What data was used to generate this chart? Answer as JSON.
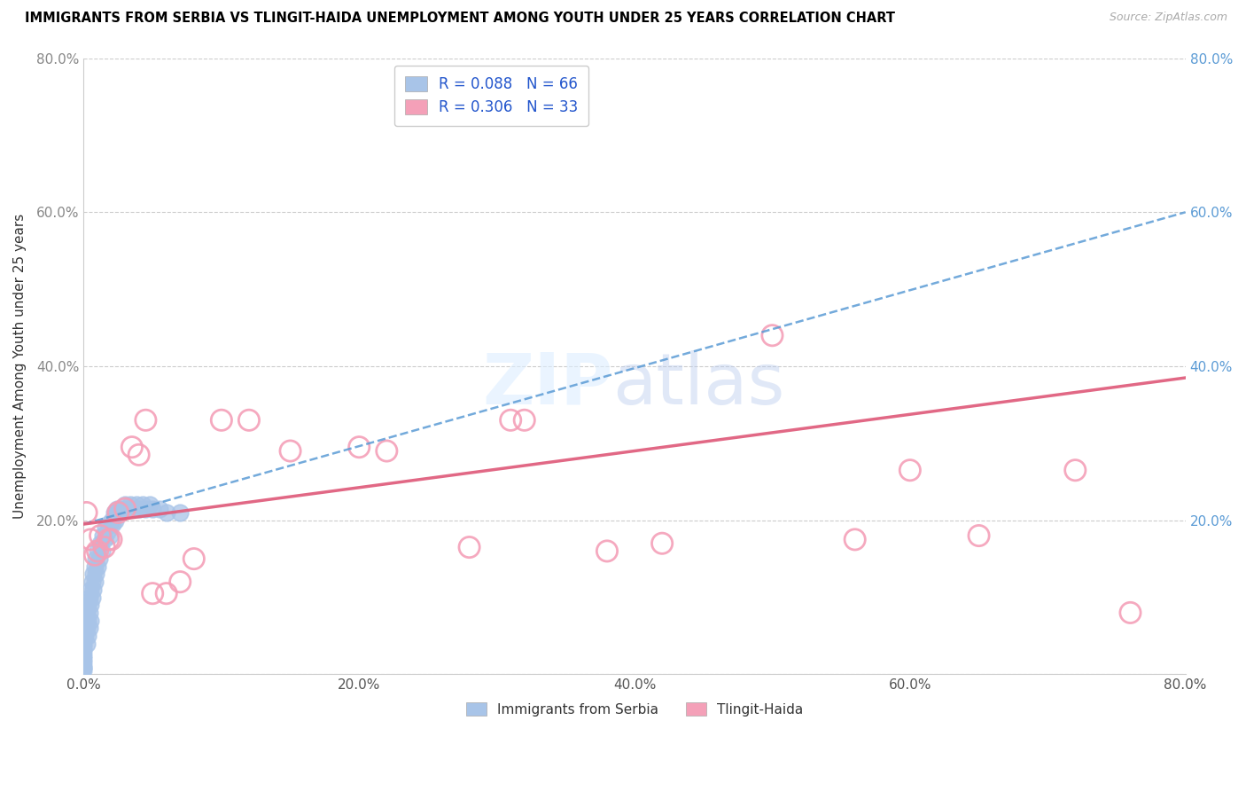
{
  "title": "IMMIGRANTS FROM SERBIA VS TLINGIT-HAIDA UNEMPLOYMENT AMONG YOUTH UNDER 25 YEARS CORRELATION CHART",
  "source": "Source: ZipAtlas.com",
  "ylabel": "Unemployment Among Youth under 25 years",
  "xlim": [
    0,
    0.8
  ],
  "ylim": [
    0,
    0.8
  ],
  "xticks": [
    0.0,
    0.2,
    0.4,
    0.6,
    0.8
  ],
  "yticks": [
    0.0,
    0.2,
    0.4,
    0.6,
    0.8
  ],
  "xtick_labels": [
    "0.0%",
    "20.0%",
    "40.0%",
    "60.0%",
    "80.0%"
  ],
  "ytick_labels": [
    "",
    "20.0%",
    "40.0%",
    "60.0%",
    "80.0%"
  ],
  "serbia_R": 0.088,
  "serbia_N": 66,
  "tlingit_R": 0.306,
  "tlingit_N": 33,
  "serbia_color": "#a8c4e8",
  "tlingit_color": "#f4a0b8",
  "serbia_line_color": "#5b9bd5",
  "tlingit_line_color": "#e0607e",
  "legend_label_1": "Immigrants from Serbia",
  "legend_label_2": "Tlingit-Haida",
  "serbia_scatter_x": [
    0.0,
    0.0,
    0.0,
    0.0,
    0.0,
    0.0,
    0.0,
    0.0,
    0.0,
    0.0,
    0.0,
    0.0,
    0.001,
    0.001,
    0.002,
    0.002,
    0.002,
    0.003,
    0.003,
    0.003,
    0.004,
    0.004,
    0.004,
    0.005,
    0.005,
    0.005,
    0.006,
    0.006,
    0.007,
    0.007,
    0.008,
    0.008,
    0.009,
    0.009,
    0.01,
    0.01,
    0.011,
    0.012,
    0.013,
    0.014,
    0.015,
    0.016,
    0.017,
    0.018,
    0.019,
    0.02,
    0.021,
    0.022,
    0.023,
    0.024,
    0.025,
    0.027,
    0.028,
    0.03,
    0.032,
    0.034,
    0.036,
    0.038,
    0.04,
    0.043,
    0.045,
    0.048,
    0.05,
    0.055,
    0.06,
    0.07
  ],
  "serbia_scatter_y": [
    0.06,
    0.05,
    0.045,
    0.04,
    0.035,
    0.03,
    0.025,
    0.02,
    0.015,
    0.01,
    0.008,
    0.005,
    0.07,
    0.05,
    0.08,
    0.06,
    0.04,
    0.09,
    0.07,
    0.05,
    0.1,
    0.08,
    0.06,
    0.11,
    0.09,
    0.07,
    0.12,
    0.1,
    0.13,
    0.11,
    0.14,
    0.12,
    0.15,
    0.13,
    0.16,
    0.14,
    0.15,
    0.17,
    0.16,
    0.18,
    0.175,
    0.19,
    0.185,
    0.195,
    0.18,
    0.2,
    0.195,
    0.21,
    0.2,
    0.215,
    0.21,
    0.21,
    0.215,
    0.22,
    0.215,
    0.22,
    0.215,
    0.22,
    0.215,
    0.22,
    0.215,
    0.22,
    0.215,
    0.215,
    0.21,
    0.21
  ],
  "tlingit_scatter_x": [
    0.002,
    0.005,
    0.008,
    0.01,
    0.012,
    0.015,
    0.018,
    0.02,
    0.025,
    0.03,
    0.035,
    0.04,
    0.045,
    0.05,
    0.06,
    0.07,
    0.08,
    0.1,
    0.12,
    0.15,
    0.2,
    0.22,
    0.28,
    0.31,
    0.32,
    0.38,
    0.42,
    0.5,
    0.56,
    0.6,
    0.65,
    0.72,
    0.76
  ],
  "tlingit_scatter_y": [
    0.21,
    0.175,
    0.155,
    0.16,
    0.18,
    0.165,
    0.175,
    0.175,
    0.21,
    0.215,
    0.295,
    0.285,
    0.33,
    0.105,
    0.105,
    0.12,
    0.15,
    0.33,
    0.33,
    0.29,
    0.295,
    0.29,
    0.165,
    0.33,
    0.33,
    0.16,
    0.17,
    0.44,
    0.175,
    0.265,
    0.18,
    0.265,
    0.08
  ],
  "serbia_line_x0": 0.0,
  "serbia_line_y0": 0.195,
  "serbia_line_x1": 0.8,
  "serbia_line_y1": 0.6,
  "tlingit_line_x0": 0.0,
  "tlingit_line_y0": 0.195,
  "tlingit_line_x1": 0.8,
  "tlingit_line_y1": 0.385
}
